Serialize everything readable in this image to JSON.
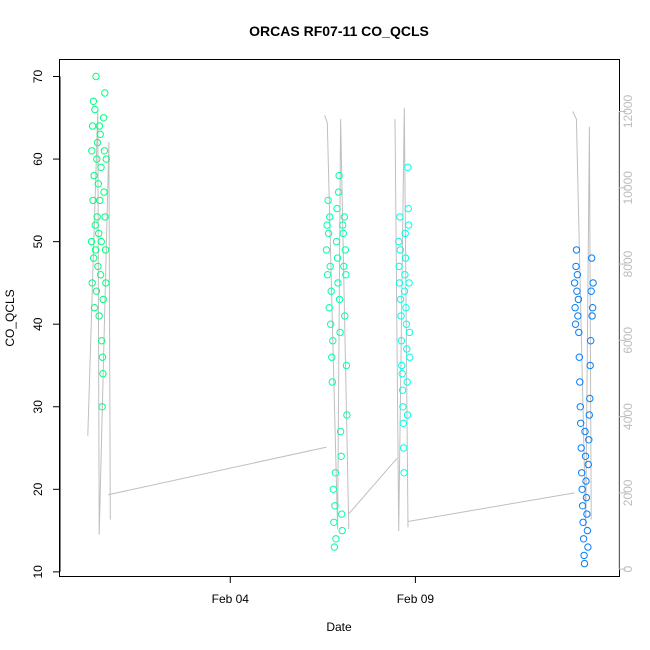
{
  "chart_data": {
    "type": "scatter",
    "title": "ORCAS RF07-11 CO_QCLS",
    "xlabel": "Date",
    "ylabel": "CO_QCLS",
    "x_ticks": [
      "Feb 04",
      "Feb 09"
    ],
    "x_tick_days": [
      4,
      9
    ],
    "xlim_days": [
      -0.6,
      14.5
    ],
    "ylim": [
      9.5,
      72
    ],
    "y_ticks": [
      10,
      20,
      30,
      40,
      50,
      60,
      70
    ],
    "y2_ticks": [
      0,
      2000,
      4000,
      6000,
      8000,
      10000,
      12000
    ],
    "y2lim": [
      -180,
      13350
    ],
    "y2_color": "#bdbdbd",
    "grid": false,
    "series": [
      {
        "color": "#00ff80",
        "x_day_range": [
          0.25,
          0.65
        ],
        "values": [
          50,
          61,
          45,
          64,
          55,
          67,
          48,
          58,
          42,
          66,
          52,
          49,
          70,
          44,
          60,
          53,
          62,
          47,
          57,
          51,
          41,
          64,
          55,
          63,
          46,
          59,
          50,
          38,
          30,
          36,
          34,
          43,
          65,
          56,
          61,
          68,
          53,
          49,
          45,
          60
        ]
      },
      {
        "color": "#00ffb0",
        "x_day_range": [
          6.6,
          7.15
        ],
        "values": [
          49,
          52,
          46,
          55,
          51,
          42,
          53,
          47,
          40,
          44,
          36,
          33,
          38,
          20,
          16,
          13,
          18,
          22,
          14,
          50,
          54,
          48,
          45,
          56,
          58,
          43,
          39,
          27,
          24,
          17,
          15,
          52,
          51,
          47,
          53,
          41,
          49,
          46,
          35,
          29
        ]
      },
      {
        "color": "#00ffea",
        "x_day_range": [
          8.55,
          8.85
        ],
        "values": [
          50,
          47,
          45,
          53,
          49,
          43,
          41,
          38,
          35,
          34,
          32,
          30,
          28,
          25,
          22,
          44,
          46,
          51,
          48,
          42,
          40,
          37,
          33,
          29,
          59,
          54,
          52,
          45,
          39,
          36
        ]
      },
      {
        "color": "#0080ff",
        "x_day_range": [
          13.3,
          13.8
        ],
        "values": [
          45,
          42,
          40,
          47,
          49,
          44,
          46,
          41,
          43,
          39,
          36,
          33,
          30,
          28,
          25,
          22,
          20,
          18,
          16,
          14,
          12,
          11,
          27,
          24,
          21,
          19,
          17,
          15,
          13,
          23,
          26,
          29,
          31,
          35,
          38,
          44,
          48,
          41,
          42,
          45
        ]
      }
    ],
    "secondary_trace": {
      "color": "#bfbfbf",
      "segments": [
        {
          "x_day": [
            0.15,
            0.42,
            0.46,
            0.72,
            0.76
          ],
          "y": [
            3500,
            12000,
            900,
            11200,
            1300
          ]
        },
        {
          "x_day": [
            6.55,
            6.62,
            6.9,
            6.98,
            7.2
          ],
          "y": [
            11900,
            11700,
            1050,
            11800,
            1050
          ]
        },
        {
          "x_day": [
            8.45,
            8.55,
            8.7,
            8.8
          ],
          "y": [
            11800,
            1000,
            12100,
            1100
          ]
        },
        {
          "x_day": [
            13.25,
            13.35,
            13.6,
            13.7,
            13.75
          ],
          "y": [
            12000,
            11800,
            1100,
            11600,
            1300
          ]
        }
      ],
      "connectors": [
        {
          "x_day": [
            0.7,
            6.6
          ],
          "y": [
            1950,
            3200
          ]
        },
        {
          "x_day": [
            7.2,
            8.5
          ],
          "y": [
            1450,
            2900
          ]
        },
        {
          "x_day": [
            8.8,
            13.3
          ],
          "y": [
            1250,
            2000
          ]
        }
      ]
    }
  }
}
